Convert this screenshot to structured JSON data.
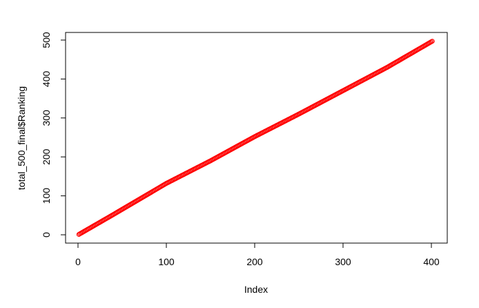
{
  "chart_data": {
    "type": "scatter",
    "xlabel": "Index",
    "ylabel": "total_500_final$Ranking",
    "xlim": [
      0,
      400
    ],
    "ylim": [
      0,
      500
    ],
    "x_ticks": [
      0,
      100,
      200,
      300,
      400
    ],
    "y_ticks": [
      0,
      100,
      200,
      300,
      400,
      500
    ],
    "x_tick_labels": [
      "0",
      "100",
      "200",
      "300",
      "400"
    ],
    "y_tick_labels": [
      "0",
      "100",
      "200",
      "300",
      "400",
      "500"
    ],
    "point_color": "#ff0000",
    "marker": "open-circle",
    "grid": false,
    "series": [
      {
        "n_points": 401,
        "x_start": 1,
        "x_end": 401,
        "trend": "increasing",
        "anchors": [
          {
            "x": 1,
            "y": 1
          },
          {
            "x": 40,
            "y": 52
          },
          {
            "x": 100,
            "y": 132
          },
          {
            "x": 150,
            "y": 190
          },
          {
            "x": 200,
            "y": 252
          },
          {
            "x": 250,
            "y": 310
          },
          {
            "x": 300,
            "y": 370
          },
          {
            "x": 350,
            "y": 430
          },
          {
            "x": 401,
            "y": 497
          }
        ]
      }
    ]
  }
}
